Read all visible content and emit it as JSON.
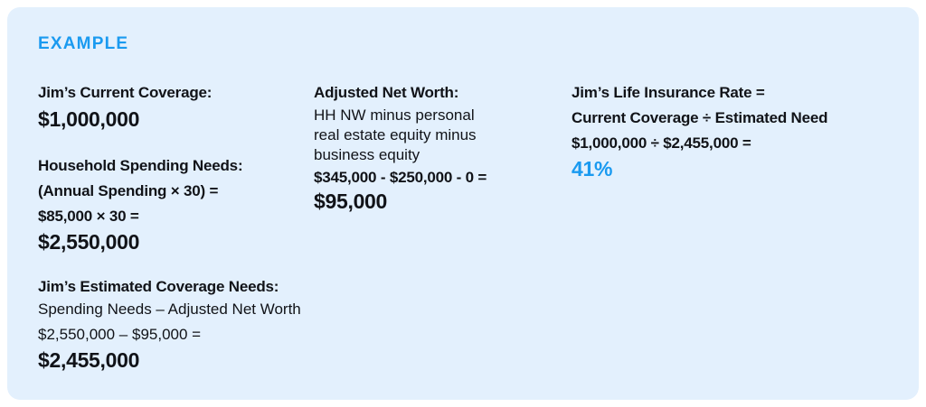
{
  "accent": "#1a9af0",
  "card_background": "#e3f0fd",
  "heading": "EXAMPLE",
  "current_coverage": {
    "label": "Jim’s Current Coverage:",
    "value": "$1,000,000"
  },
  "spending_needs": {
    "label": "Household Spending Needs:",
    "formula": "(Annual Spending × 30) =",
    "calc": "$85,000 × 30 =",
    "value": "$2,550,000"
  },
  "net_worth": {
    "label": "Adjusted Net Worth:",
    "desc_1": "HH NW minus personal",
    "desc_2": "real estate equity minus",
    "desc_3": "business equity",
    "calc": "$345,000 - $250,000 - 0 =",
    "value": "$95,000"
  },
  "rate": {
    "label": "Jim’s Life Insurance Rate =",
    "formula": "Current Coverage ÷ Estimated Need",
    "calc": "$1,000,000 ÷ $2,455,000 =",
    "value": "41%"
  },
  "estimated_needs": {
    "label": "Jim’s Estimated Coverage Needs:",
    "formula": "Spending Needs – Adjusted Net Worth",
    "calc": "$2,550,000 – $95,000 =",
    "value": "$2,455,000"
  }
}
